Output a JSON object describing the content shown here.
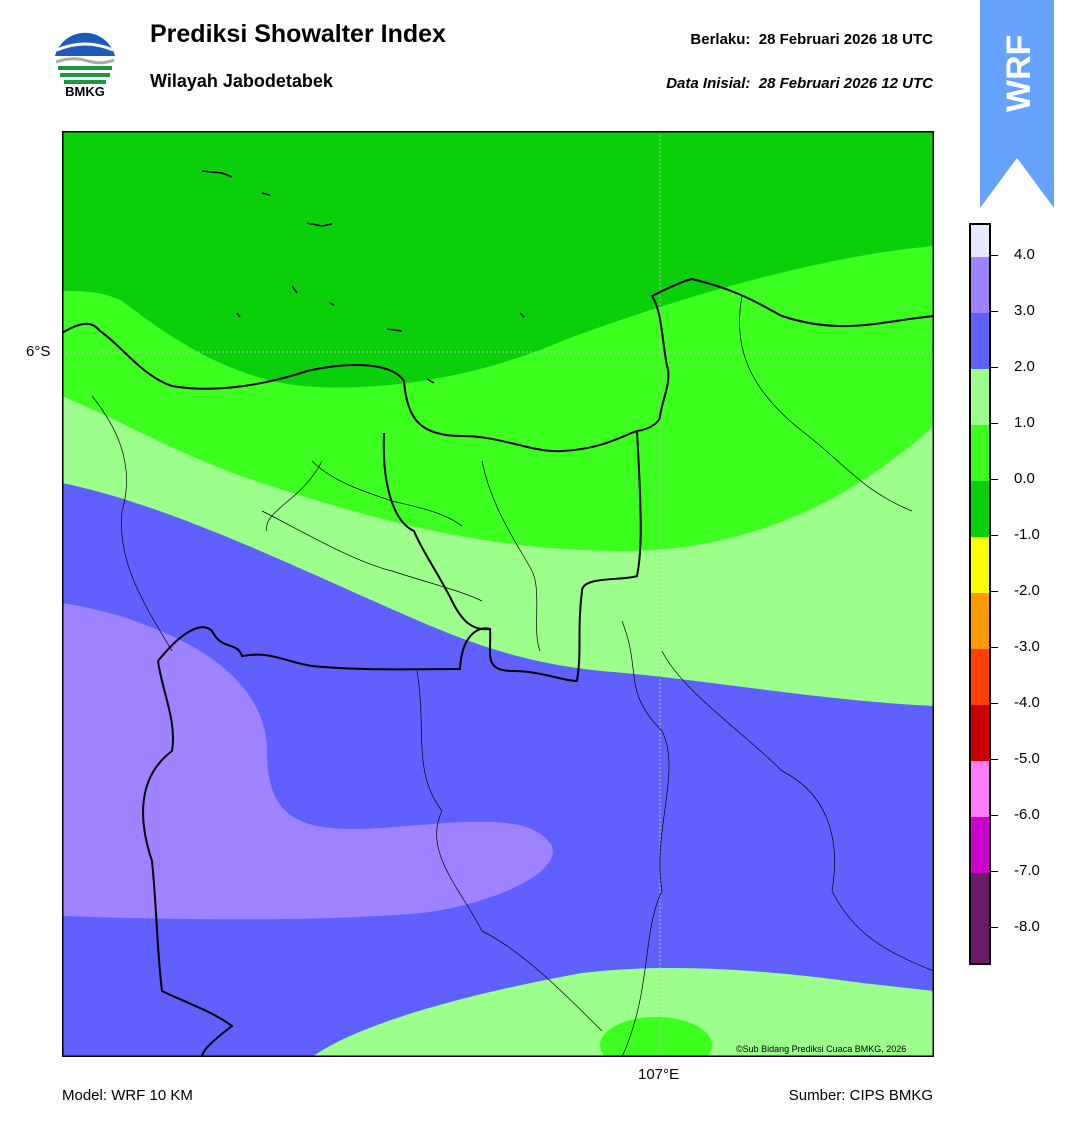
{
  "header": {
    "title": "Prediksi Showalter Index",
    "subtitle": "Wilayah Jabodetabek",
    "valid_label": "Berlaku:  28 Februari 2026 18 UTC",
    "init_label": "Data Inisial:  28 Februari 2026 12 UTC",
    "logo_text": "BMKG",
    "badge_text": "WRF"
  },
  "map": {
    "lat_label": "6°S",
    "lon_label": "107°E",
    "copyright": "©Sub Bidang Prediksi Cuaca BMKG, 2026",
    "fill_colors": {
      "dark_green": "#0ad00a",
      "green": "#3cff20",
      "light_green": "#9cff8c",
      "blue": "#6060ff",
      "lavender": "#9e82ff"
    }
  },
  "colorbar": {
    "ticks": [
      "4.0",
      "3.0",
      "2.0",
      "1.0",
      "0.0",
      "-1.0",
      "-2.0",
      "-3.0",
      "-4.0",
      "-5.0",
      "-6.0",
      "-7.0",
      "-8.0"
    ],
    "colors": [
      "#e8e8ff",
      "#9e82ff",
      "#6060ff",
      "#9cff8c",
      "#3cff20",
      "#0ad00a",
      "#ffff00",
      "#ff9900",
      "#ff4000",
      "#c80000",
      "#ff7cff",
      "#cc00cc",
      "#681c68"
    ]
  },
  "footer": {
    "model": "Model: WRF 10 KM",
    "source": "Sumber: CIPS BMKG"
  }
}
